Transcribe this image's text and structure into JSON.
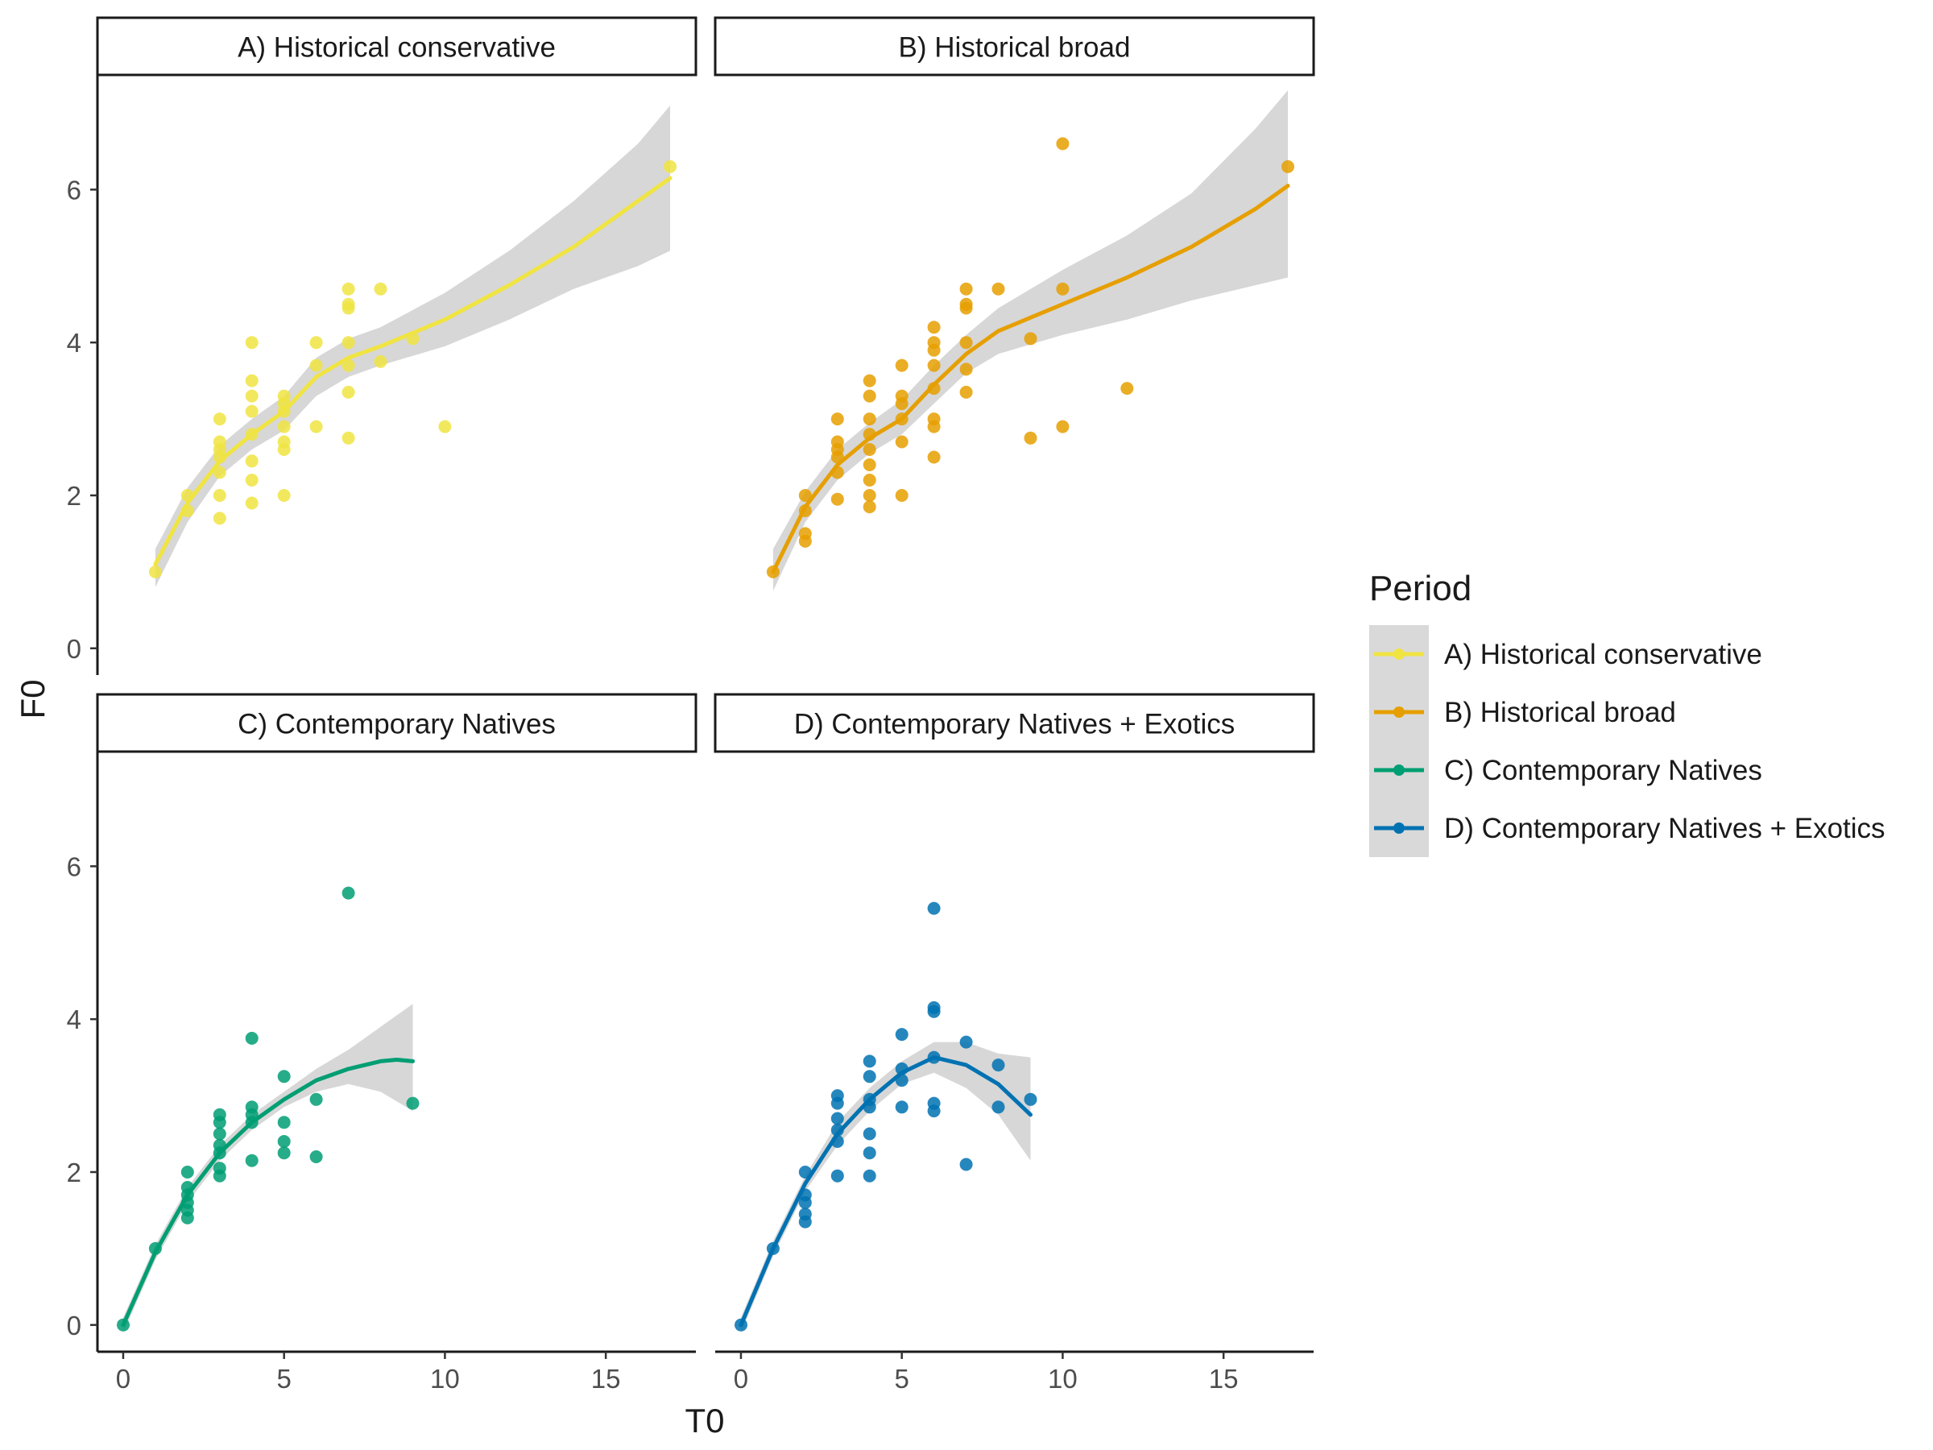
{
  "chart_data": {
    "type": "scatter",
    "xlabel": "T0",
    "ylabel": "F0",
    "xlim": [
      -0.8,
      17.8
    ],
    "ylim": [
      -0.35,
      7.5
    ],
    "x_ticks": [
      0,
      5,
      10,
      15
    ],
    "y_ticks": [
      0,
      2,
      4,
      6
    ],
    "grid": false,
    "legend": {
      "title": "Period",
      "placement": "right",
      "entries": [
        "A) Historical conservative",
        "B) Historical broad",
        "C) Contemporary Natives",
        "D) Contemporary Natives + Exotics"
      ]
    },
    "panels": [
      {
        "name": "A) Historical conservative",
        "color": "#F0E442",
        "points": [
          [
            1,
            1
          ],
          [
            2,
            1.8
          ],
          [
            2,
            2
          ],
          [
            3,
            1.7
          ],
          [
            3,
            2.0
          ],
          [
            3,
            2.3
          ],
          [
            3,
            2.5
          ],
          [
            3,
            2.6
          ],
          [
            3,
            2.7
          ],
          [
            3,
            3.0
          ],
          [
            4,
            1.9
          ],
          [
            4,
            2.2
          ],
          [
            4,
            2.45
          ],
          [
            4,
            2.8
          ],
          [
            4,
            3.1
          ],
          [
            4,
            3.3
          ],
          [
            4,
            3.5
          ],
          [
            4,
            4.0
          ],
          [
            5,
            2.0
          ],
          [
            5,
            2.6
          ],
          [
            5,
            2.7
          ],
          [
            5,
            2.9
          ],
          [
            5,
            3.1
          ],
          [
            5,
            3.2
          ],
          [
            5,
            3.3
          ],
          [
            6,
            2.9
          ],
          [
            6,
            3.7
          ],
          [
            6,
            4.0
          ],
          [
            7,
            2.75
          ],
          [
            7,
            3.35
          ],
          [
            7,
            3.7
          ],
          [
            7,
            4.0
          ],
          [
            7,
            4.45
          ],
          [
            7,
            4.5
          ],
          [
            7,
            4.7
          ],
          [
            8,
            3.75
          ],
          [
            8,
            4.7
          ],
          [
            9,
            4.05
          ],
          [
            10,
            2.9
          ],
          [
            17,
            6.3
          ]
        ],
        "smooth": [
          [
            1,
            1.1
          ],
          [
            2,
            1.9
          ],
          [
            3,
            2.45
          ],
          [
            4,
            2.8
          ],
          [
            5,
            3.1
          ],
          [
            6,
            3.55
          ],
          [
            7,
            3.8
          ],
          [
            8,
            3.95
          ],
          [
            10,
            4.3
          ],
          [
            12,
            4.75
          ],
          [
            14,
            5.25
          ],
          [
            17,
            6.15
          ]
        ],
        "band_upper": [
          [
            1,
            1.3
          ],
          [
            2,
            2.1
          ],
          [
            3,
            2.65
          ],
          [
            4,
            3.0
          ],
          [
            5,
            3.3
          ],
          [
            6,
            3.8
          ],
          [
            7,
            4.05
          ],
          [
            8,
            4.2
          ],
          [
            10,
            4.65
          ],
          [
            12,
            5.2
          ],
          [
            14,
            5.85
          ],
          [
            16,
            6.6
          ],
          [
            17,
            7.1
          ]
        ],
        "band_lower": [
          [
            1,
            0.8
          ],
          [
            2,
            1.65
          ],
          [
            3,
            2.25
          ],
          [
            4,
            2.6
          ],
          [
            5,
            2.85
          ],
          [
            6,
            3.3
          ],
          [
            7,
            3.55
          ],
          [
            8,
            3.7
          ],
          [
            10,
            3.95
          ],
          [
            12,
            4.3
          ],
          [
            14,
            4.7
          ],
          [
            16,
            5.0
          ],
          [
            17,
            5.2
          ]
        ]
      },
      {
        "name": "B) Historical broad",
        "color": "#E69F00",
        "points": [
          [
            1,
            1
          ],
          [
            2,
            1.4
          ],
          [
            2,
            1.5
          ],
          [
            2,
            1.8
          ],
          [
            2,
            2.0
          ],
          [
            3,
            1.95
          ],
          [
            3,
            2.3
          ],
          [
            3,
            2.5
          ],
          [
            3,
            2.6
          ],
          [
            3,
            2.7
          ],
          [
            3,
            3.0
          ],
          [
            4,
            1.85
          ],
          [
            4,
            2.0
          ],
          [
            4,
            2.2
          ],
          [
            4,
            2.4
          ],
          [
            4,
            2.6
          ],
          [
            4,
            2.8
          ],
          [
            4,
            3.0
          ],
          [
            4,
            3.3
          ],
          [
            4,
            3.5
          ],
          [
            5,
            2.0
          ],
          [
            5,
            2.7
          ],
          [
            5,
            3.0
          ],
          [
            5,
            3.2
          ],
          [
            5,
            3.3
          ],
          [
            5,
            3.7
          ],
          [
            6,
            2.5
          ],
          [
            6,
            2.9
          ],
          [
            6,
            3.0
          ],
          [
            6,
            3.4
          ],
          [
            6,
            3.7
          ],
          [
            6,
            3.9
          ],
          [
            6,
            4.0
          ],
          [
            6,
            4.2
          ],
          [
            7,
            3.35
          ],
          [
            7,
            3.65
          ],
          [
            7,
            4.0
          ],
          [
            7,
            4.45
          ],
          [
            7,
            4.5
          ],
          [
            7,
            4.7
          ],
          [
            8,
            4.7
          ],
          [
            9,
            2.75
          ],
          [
            9,
            4.05
          ],
          [
            10,
            2.9
          ],
          [
            10,
            4.7
          ],
          [
            10,
            6.6
          ],
          [
            12,
            3.4
          ],
          [
            17,
            6.3
          ]
        ],
        "smooth": [
          [
            1,
            1.0
          ],
          [
            2,
            1.85
          ],
          [
            3,
            2.4
          ],
          [
            4,
            2.75
          ],
          [
            5,
            3.0
          ],
          [
            6,
            3.45
          ],
          [
            7,
            3.85
          ],
          [
            8,
            4.15
          ],
          [
            10,
            4.5
          ],
          [
            12,
            4.85
          ],
          [
            14,
            5.25
          ],
          [
            16,
            5.75
          ],
          [
            17,
            6.05
          ]
        ],
        "band_upper": [
          [
            1,
            1.3
          ],
          [
            2,
            2.05
          ],
          [
            3,
            2.6
          ],
          [
            4,
            2.95
          ],
          [
            5,
            3.25
          ],
          [
            6,
            3.7
          ],
          [
            7,
            4.1
          ],
          [
            8,
            4.45
          ],
          [
            10,
            4.95
          ],
          [
            12,
            5.4
          ],
          [
            14,
            5.95
          ],
          [
            16,
            6.8
          ],
          [
            17,
            7.3
          ]
        ],
        "band_lower": [
          [
            1,
            0.75
          ],
          [
            2,
            1.65
          ],
          [
            3,
            2.2
          ],
          [
            4,
            2.55
          ],
          [
            5,
            2.8
          ],
          [
            6,
            3.2
          ],
          [
            7,
            3.6
          ],
          [
            8,
            3.85
          ],
          [
            10,
            4.1
          ],
          [
            12,
            4.3
          ],
          [
            14,
            4.55
          ],
          [
            16,
            4.75
          ],
          [
            17,
            4.85
          ]
        ]
      },
      {
        "name": "C) Contemporary Natives",
        "color": "#009E73",
        "points": [
          [
            0,
            0
          ],
          [
            1,
            1
          ],
          [
            2,
            1.4
          ],
          [
            2,
            1.5
          ],
          [
            2,
            1.6
          ],
          [
            2,
            1.7
          ],
          [
            2,
            1.8
          ],
          [
            2,
            2.0
          ],
          [
            3,
            1.95
          ],
          [
            3,
            2.05
          ],
          [
            3,
            2.25
          ],
          [
            3,
            2.35
          ],
          [
            3,
            2.5
          ],
          [
            3,
            2.65
          ],
          [
            3,
            2.75
          ],
          [
            4,
            2.15
          ],
          [
            4,
            2.65
          ],
          [
            4,
            2.75
          ],
          [
            4,
            2.85
          ],
          [
            4,
            3.75
          ],
          [
            5,
            2.25
          ],
          [
            5,
            2.4
          ],
          [
            5,
            2.65
          ],
          [
            5,
            3.25
          ],
          [
            6,
            2.2
          ],
          [
            6,
            2.95
          ],
          [
            7,
            5.65
          ],
          [
            9,
            2.9
          ]
        ],
        "smooth": [
          [
            0,
            0
          ],
          [
            1,
            0.95
          ],
          [
            2,
            1.7
          ],
          [
            3,
            2.25
          ],
          [
            4,
            2.65
          ],
          [
            5,
            2.95
          ],
          [
            6,
            3.2
          ],
          [
            7,
            3.35
          ],
          [
            8,
            3.45
          ],
          [
            8.5,
            3.47
          ],
          [
            9,
            3.45
          ]
        ],
        "band_upper": [
          [
            0,
            0.1
          ],
          [
            1,
            1.05
          ],
          [
            2,
            1.8
          ],
          [
            3,
            2.35
          ],
          [
            4,
            2.75
          ],
          [
            5,
            3.05
          ],
          [
            6,
            3.35
          ],
          [
            7,
            3.6
          ],
          [
            8,
            3.9
          ],
          [
            9,
            4.2
          ]
        ],
        "band_lower": [
          [
            0,
            -0.1
          ],
          [
            1,
            0.85
          ],
          [
            2,
            1.6
          ],
          [
            3,
            2.15
          ],
          [
            4,
            2.55
          ],
          [
            5,
            2.85
          ],
          [
            6,
            3.05
          ],
          [
            7,
            3.15
          ],
          [
            8,
            3.05
          ],
          [
            9,
            2.8
          ]
        ]
      },
      {
        "name": "D) Contemporary Natives + Exotics",
        "color": "#0072B2",
        "points": [
          [
            0,
            0
          ],
          [
            1,
            1
          ],
          [
            2,
            1.35
          ],
          [
            2,
            1.45
          ],
          [
            2,
            1.6
          ],
          [
            2,
            1.7
          ],
          [
            2,
            2.0
          ],
          [
            3,
            1.95
          ],
          [
            3,
            2.4
          ],
          [
            3,
            2.55
          ],
          [
            3,
            2.7
          ],
          [
            3,
            2.9
          ],
          [
            3,
            3.0
          ],
          [
            4,
            1.95
          ],
          [
            4,
            2.25
          ],
          [
            4,
            2.5
          ],
          [
            4,
            2.85
          ],
          [
            4,
            2.95
          ],
          [
            4,
            3.25
          ],
          [
            4,
            3.45
          ],
          [
            5,
            2.85
          ],
          [
            5,
            3.2
          ],
          [
            5,
            3.35
          ],
          [
            5,
            3.8
          ],
          [
            6,
            2.8
          ],
          [
            6,
            2.9
          ],
          [
            6,
            3.5
          ],
          [
            6,
            4.1
          ],
          [
            6,
            4.15
          ],
          [
            6,
            5.45
          ],
          [
            7,
            2.1
          ],
          [
            7,
            3.7
          ],
          [
            8,
            2.85
          ],
          [
            8,
            3.4
          ],
          [
            9,
            2.95
          ]
        ],
        "smooth": [
          [
            0,
            0
          ],
          [
            1,
            1.0
          ],
          [
            2,
            1.85
          ],
          [
            3,
            2.5
          ],
          [
            4,
            2.95
          ],
          [
            5,
            3.3
          ],
          [
            6,
            3.5
          ],
          [
            7,
            3.4
          ],
          [
            8,
            3.15
          ],
          [
            9,
            2.75
          ]
        ],
        "band_upper": [
          [
            0,
            0.1
          ],
          [
            1,
            1.1
          ],
          [
            2,
            1.95
          ],
          [
            3,
            2.65
          ],
          [
            4,
            3.1
          ],
          [
            5,
            3.45
          ],
          [
            6,
            3.7
          ],
          [
            7,
            3.7
          ],
          [
            8,
            3.55
          ],
          [
            9,
            3.5
          ]
        ],
        "band_lower": [
          [
            0,
            -0.1
          ],
          [
            1,
            0.9
          ],
          [
            2,
            1.75
          ],
          [
            3,
            2.35
          ],
          [
            4,
            2.8
          ],
          [
            5,
            3.15
          ],
          [
            6,
            3.3
          ],
          [
            7,
            3.1
          ],
          [
            8,
            2.75
          ],
          [
            9,
            2.15
          ]
        ]
      }
    ]
  }
}
